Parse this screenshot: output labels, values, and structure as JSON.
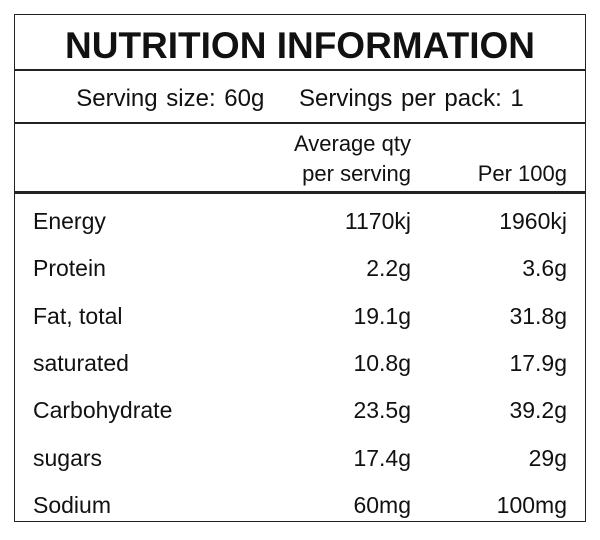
{
  "header": {
    "title": "NUTRITION INFORMATION"
  },
  "serving": {
    "size": "Serving size: 60g",
    "per_pack": "Servings per pack: 1"
  },
  "table": {
    "columns": [
      [
        "Average qty",
        "per serving"
      ],
      "Per 100g"
    ],
    "rows": [
      [
        "Energy",
        "1170kj",
        "1960kj"
      ],
      [
        "Protein",
        "2.2g",
        "3.6g"
      ],
      [
        "Fat, total",
        "19.1g",
        "31.8g"
      ],
      [
        "saturated",
        "10.8g",
        "17.9g"
      ],
      [
        "Carbohydrate",
        "23.5g",
        "39.2g"
      ],
      [
        "sugars",
        "17.4g",
        "29g"
      ],
      [
        "Sodium",
        "60mg",
        "100mg"
      ]
    ]
  }
}
